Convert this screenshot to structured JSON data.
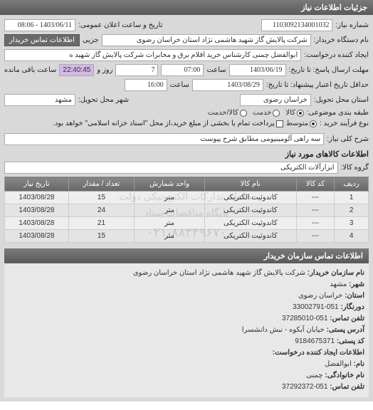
{
  "header": {
    "title": "جزئیات اطلاعات نیاز"
  },
  "fields": {
    "req_no_label": "شماره نیاز:",
    "req_no": "1103092134001032",
    "announce_label": "تاریخ و ساعت اعلان عمومی:",
    "announce_val": "1403/06/11 - 08:06",
    "buyer_org_label": "نام دستگاه خریدار:",
    "buyer_org": "شرکت پالایش گاز شهید هاشمی نژاد   استان خراسان رضوی",
    "more_label": "جزیی",
    "contact_btn": "اطلاعات تماس خریدار",
    "creator_label": "ایجاد کننده درخواست:",
    "creator": "ابوالفضل چمنی کارشناس خرید اقلام برق و مخابرات شرکت پالایش گاز شهید ه",
    "deadline_label": "مهلت ارسال پاسخ: تا تاریخ:",
    "deadline_date": "1403/06/19",
    "deadline_time_label": "ساعت",
    "deadline_time": "07:00",
    "days_left": "7",
    "days_left_label": "روز و",
    "remain_time": "22:40:45",
    "remain_label": "ساعت باقی مانده",
    "valid_label": "حداقل تاریخ اعتبار پیشنهاد: تا تاریخ:",
    "valid_date": "1403/08/29",
    "valid_time": "16:00",
    "province_label": "استان محل تحویل:",
    "province": "خراسان رضوی",
    "city_label": "شهر محل تحویل:",
    "city": "مشهد",
    "category_label": "طبقه بندی موضوعی:",
    "cat_goods": "کالا",
    "cat_service": "خدمت",
    "cat_both": "کالا/خدمت",
    "process_label": "نوع فرآیند خرید :",
    "proc_mid": "متوسط",
    "proc_note": "پرداخت تمام یا بخشی از مبلغ خرید،از محل \"اسناد خزانه اسلامی\" خواهد بود.",
    "desc_label": "شرح کلی نیاز:",
    "desc_val": "سه راهی آلومینیومی مطابق شرح پیوست",
    "items_title": "اطلاعات کالاهای مورد نیاز",
    "group_label": "گروه کالا:",
    "group_val": "ابزارآلات الکتریکی"
  },
  "table": {
    "headers": [
      "ردیف",
      "کد کالا",
      "نام کالا",
      "واحد شمارش",
      "تعداد / مقدار",
      "تاریخ نیاز"
    ],
    "rows": [
      [
        "1",
        "---",
        "کاندوئیت الکتریکی",
        "متر",
        "15",
        "1403/08/28"
      ],
      [
        "2",
        "---",
        "کاندوئیت الکتریکی",
        "متر",
        "24",
        "1403/08/28"
      ],
      [
        "3",
        "---",
        "کاندوئیت الکتریکی",
        "متر",
        "21",
        "1403/08/28"
      ],
      [
        "4",
        "---",
        "کاندوئیت الکتریکی",
        "متر",
        "15",
        "1403/08/28"
      ]
    ],
    "watermark1": "سامانه تدارکات الکترونیکی دولت",
    "watermark2": "پایگاه مناقصات ستاد",
    "watermark3": "۰۲۱-۸۸۳۴۹۶۷۰"
  },
  "footer": {
    "title": "اطلاعات تماس سازمان خریدار",
    "org_label": "نام سازمان خریدار:",
    "org_val": "شرکت پالایش گاز شهید هاشمی نژاد استان خراسان رضوی",
    "city_label": "شهر:",
    "city_val": "مشهد",
    "prov_label": "استان:",
    "prov_val": "خراسان رضوی",
    "fax_label": "دورنگار:",
    "fax_val": "051-33002791",
    "tel_label": "تلفن تماس:",
    "tel_val": "051-37285010",
    "addr_label": "آدرس پستی:",
    "addr_val": "خیابان آبکوه - نبش دانشسرا",
    "post_label": "کد پستی:",
    "post_val": "9184675371",
    "creator_title": "اطلاعات ایجاد کننده درخواست:",
    "name_label": "نام:",
    "name_val": "ابوالفضل",
    "lname_label": "نام خانوادگی:",
    "lname_val": "چمنی",
    "tel2_label": "تلفن تماس:",
    "tel2_val": "051-37292372"
  }
}
